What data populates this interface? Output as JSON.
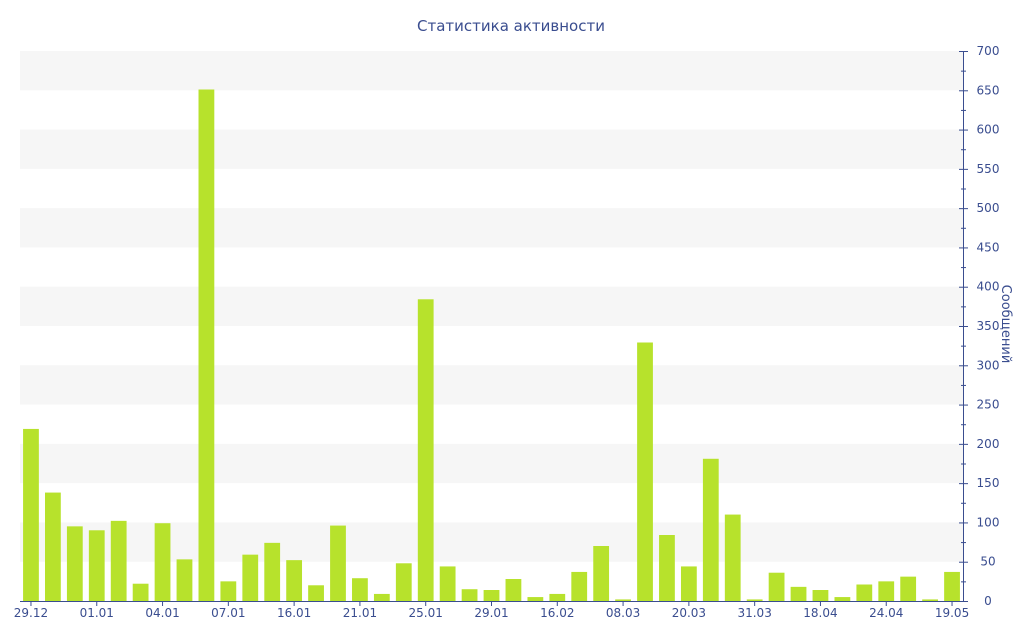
{
  "chart_data": {
    "type": "bar",
    "title": "Статистика активности",
    "xlabel": "",
    "ylabel": "Сообщений",
    "y_axis_side": "right",
    "ylim": [
      0,
      700
    ],
    "yticks": [
      0,
      50,
      100,
      150,
      200,
      250,
      300,
      350,
      400,
      450,
      500,
      550,
      600,
      650,
      700
    ],
    "grid": "alternating horizontal bands",
    "legend": "none",
    "categories": [
      "29.12",
      "",
      "",
      "01.01",
      "",
      "",
      "04.01",
      "",
      "",
      "07.01",
      "",
      "",
      "16.01",
      "",
      "",
      "21.01",
      "",
      "",
      "25.01",
      "",
      "",
      "29.01",
      "",
      "",
      "16.02",
      "",
      "",
      "08.03",
      "",
      "",
      "20.03",
      "",
      "",
      "31.03",
      "",
      "",
      "18.04",
      "",
      "",
      "24.04",
      "",
      "",
      "19.05"
    ],
    "values": [
      219,
      138,
      95,
      90,
      102,
      22,
      99,
      53,
      651,
      25,
      59,
      74,
      52,
      20,
      96,
      29,
      9,
      48,
      384,
      44,
      15,
      14,
      28,
      5,
      9,
      37,
      70,
      2,
      329,
      84,
      44,
      181,
      110,
      2,
      36,
      18,
      14,
      5,
      21,
      25,
      31,
      2,
      37
    ],
    "colors": {
      "bar": "#b7e22c",
      "axis": "#3a4d8f",
      "text": "#3a4d8f",
      "band": "#f6f6f6"
    }
  }
}
